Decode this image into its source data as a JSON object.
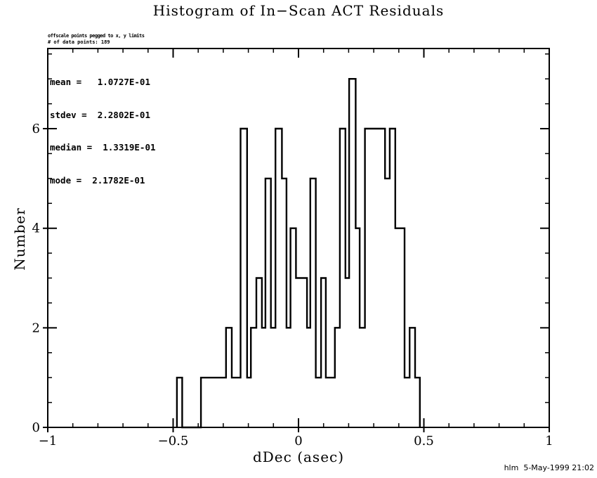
{
  "title": "Histogram of In−Scan ACT Residuals",
  "annotations": {
    "offscale_note": "offscale points pegged to x, y limits",
    "n_points": "# of data points: 189",
    "stats": [
      "mean =   1.0727E-01",
      "stdev =  2.2802E-01",
      "median =  1.3319E-01",
      "mode =  2.1782E-01"
    ]
  },
  "footer": "hlm  5-May-1999 21:02",
  "colors": {
    "line": "#000000",
    "bg": "#ffffff"
  },
  "chart_data": {
    "type": "bar",
    "subtype": "step-outline-histogram",
    "title": "Histogram of In−Scan ACT Residuals",
    "xlabel": "dDec (asec)",
    "ylabel": "Number",
    "xlim": [
      -1,
      1
    ],
    "ylim": [
      0,
      7.61
    ],
    "grid": false,
    "x_major_ticks": [
      -1,
      -0.5,
      0,
      0.5,
      1
    ],
    "x_major_labels": [
      "−1",
      "−0.5",
      "0",
      "0.5",
      "1"
    ],
    "x_minor_step": 0.1,
    "y_major_ticks": [
      0,
      2,
      4,
      6
    ],
    "y_major_labels": [
      "0",
      "2",
      "4",
      "6"
    ],
    "y_minor_step": 0.5,
    "steps_comment": "each entry = [x position, level the outline changes to]; outline starts and ends at 0",
    "steps": [
      [
        -0.485,
        1
      ],
      [
        -0.464,
        0
      ],
      [
        -0.389,
        1
      ],
      [
        -0.289,
        2
      ],
      [
        -0.266,
        1
      ],
      [
        -0.231,
        6
      ],
      [
        -0.205,
        1
      ],
      [
        -0.19,
        2
      ],
      [
        -0.168,
        3
      ],
      [
        -0.146,
        2
      ],
      [
        -0.132,
        5
      ],
      [
        -0.11,
        2
      ],
      [
        -0.092,
        6
      ],
      [
        -0.066,
        5
      ],
      [
        -0.048,
        2
      ],
      [
        -0.032,
        4
      ],
      [
        -0.01,
        3
      ],
      [
        0.034,
        2
      ],
      [
        0.047,
        5
      ],
      [
        0.069,
        1
      ],
      [
        0.09,
        3
      ],
      [
        0.109,
        1
      ],
      [
        0.145,
        2
      ],
      [
        0.165,
        6
      ],
      [
        0.187,
        3
      ],
      [
        0.202,
        7
      ],
      [
        0.228,
        4
      ],
      [
        0.244,
        2
      ],
      [
        0.265,
        6
      ],
      [
        0.345,
        5
      ],
      [
        0.364,
        6
      ],
      [
        0.386,
        4
      ],
      [
        0.423,
        1
      ],
      [
        0.443,
        2
      ],
      [
        0.465,
        1
      ],
      [
        0.484,
        0
      ]
    ]
  }
}
